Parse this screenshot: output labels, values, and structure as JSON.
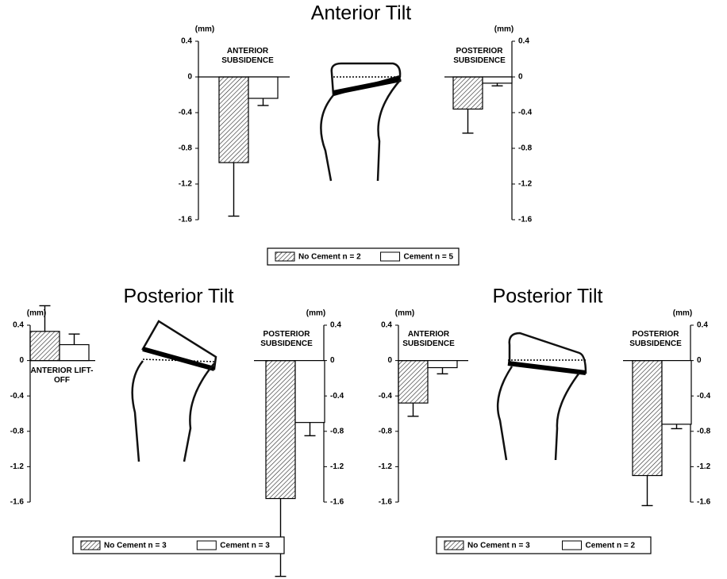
{
  "chart_data": [
    {
      "type": "bar",
      "title": "Anterior Tilt",
      "y_label": "(mm)",
      "y2_label": "(mm)",
      "categories": [
        "ANTERIOR SUBSIDENCE",
        "POSTERIOR SUBSIDENCE"
      ],
      "series": [
        {
          "name": "No Cement n = 2",
          "color": "#5a5a5a",
          "hatch": true,
          "values": [
            -0.96,
            -0.36
          ],
          "errors": [
            0.6,
            0.27
          ]
        },
        {
          "name": "Cement n = 5",
          "color": "#ffffff",
          "hatch": false,
          "values": [
            -0.24,
            -0.07
          ],
          "errors": [
            0.08,
            0.03
          ]
        }
      ],
      "ylim": [
        -1.6,
        0.4
      ],
      "yticks": [
        0.4,
        0,
        -0.4,
        -0.8,
        -1.2,
        -1.6
      ],
      "y2lim": [
        -1.6,
        0.4
      ],
      "y2ticks": [
        0.4,
        0,
        -0.4,
        -0.8,
        -1.2,
        -1.6
      ]
    },
    {
      "type": "bar",
      "title": "Posterior Tilt",
      "y_label": "(mm)",
      "y2_label": "(mm)",
      "categories": [
        "ANTERIOR LIFT-OFF",
        "POSTERIOR SUBSIDENCE"
      ],
      "series": [
        {
          "name": "No Cement n = 3",
          "color": "#5a5a5a",
          "hatch": true,
          "values": [
            0.33,
            -1.56
          ],
          "errors": [
            0.29,
            0.88
          ]
        },
        {
          "name": "Cement n = 3",
          "color": "#ffffff",
          "hatch": false,
          "values": [
            0.18,
            -0.7
          ],
          "errors": [
            0.12,
            0.15
          ]
        }
      ],
      "ylim": [
        -1.6,
        0.4
      ],
      "yticks": [
        0.4,
        0,
        -0.4,
        -0.8,
        -1.2,
        -1.6
      ],
      "y2lim": [
        -1.6,
        0.4
      ],
      "y2ticks": [
        0.4,
        0,
        -0.4,
        -0.8,
        -1.2,
        -1.6
      ]
    },
    {
      "type": "bar",
      "title": "Posterior Tilt",
      "y_label": "(mm)",
      "y2_label": "(mm)",
      "categories": [
        "ANTERIOR SUBSIDENCE",
        "POSTERIOR SUBSIDENCE"
      ],
      "series": [
        {
          "name": "No Cement n = 3",
          "color": "#5a5a5a",
          "hatch": true,
          "values": [
            -0.48,
            -1.3
          ],
          "errors": [
            0.15,
            0.34
          ]
        },
        {
          "name": "Cement n = 2",
          "color": "#ffffff",
          "hatch": false,
          "values": [
            -0.08,
            -0.72
          ],
          "errors": [
            0.07,
            0.05
          ]
        }
      ],
      "ylim": [
        -1.6,
        0.4
      ],
      "yticks": [
        0.4,
        0,
        -0.4,
        -0.8,
        -1.2,
        -1.6
      ],
      "y2lim": [
        -1.6,
        0.4
      ],
      "y2ticks": [
        0.4,
        0,
        -0.4,
        -0.8,
        -1.2,
        -1.6
      ]
    }
  ]
}
